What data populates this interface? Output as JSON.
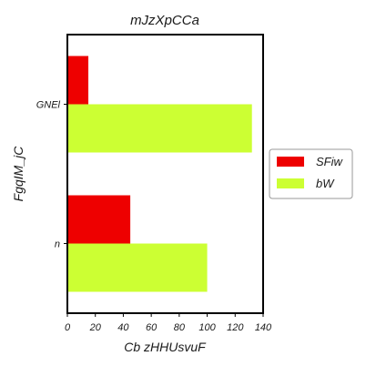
{
  "chart_data": {
    "type": "bar",
    "orientation": "horizontal",
    "title": "mJzXpCCa",
    "xlabel": "Cb zHHUsvuF",
    "ylabel": "FgqIM_jC",
    "categories": [
      "GNEl",
      "n"
    ],
    "series": [
      {
        "name": "SFiw",
        "color": "#ee0000",
        "values": [
          15,
          45
        ]
      },
      {
        "name": "bW",
        "color": "#ccff33",
        "values": [
          132,
          100
        ]
      }
    ],
    "xlim": [
      0,
      140
    ],
    "xticks": [
      0,
      20,
      40,
      60,
      80,
      100,
      120,
      140
    ],
    "grid": false,
    "legend_position": "right"
  }
}
